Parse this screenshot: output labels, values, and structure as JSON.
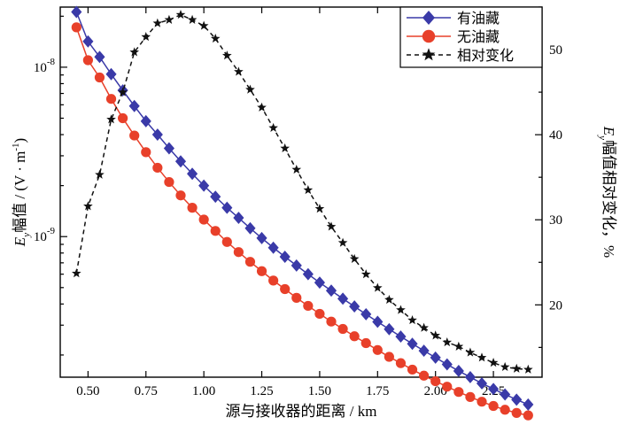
{
  "chart_data": {
    "type": "line",
    "xlabel": "源与接收器的距离 / km",
    "ylabel_left": {
      "symbol": "E",
      "sub": "y",
      "text": "幅值 / (V · m",
      "sup": "-1",
      "close": ")"
    },
    "ylabel_right": {
      "symbol": "E",
      "sub": "y",
      "text": "幅值相对变化，%"
    },
    "xlim": [
      0.38,
      2.46
    ],
    "ylim_left_log10": [
      -9.83,
      -7.645
    ],
    "ylim_right": [
      11.5,
      55
    ],
    "x_ticks": [
      "0.50",
      "0.75",
      "1.00",
      "1.25",
      "1.50",
      "1.75",
      "2.00",
      "2.25"
    ],
    "x_tick_values": [
      0.5,
      0.75,
      1.0,
      1.25,
      1.5,
      1.75,
      2.0,
      2.25
    ],
    "y_left_ticks": [
      {
        "base": "10",
        "exp": "-8",
        "value": 1e-08
      },
      {
        "base": "10",
        "exp": "-9",
        "value": 1e-09
      }
    ],
    "y_right_ticks": [
      "20",
      "30",
      "40",
      "50"
    ],
    "y_right_tick_values": [
      20,
      30,
      40,
      50
    ],
    "x": [
      0.45,
      0.5,
      0.55,
      0.6,
      0.65,
      0.7,
      0.75,
      0.8,
      0.85,
      0.9,
      0.95,
      1.0,
      1.05,
      1.1,
      1.15,
      1.2,
      1.25,
      1.3,
      1.35,
      1.4,
      1.45,
      1.5,
      1.55,
      1.6,
      1.65,
      1.7,
      1.75,
      1.8,
      1.85,
      1.9,
      1.95,
      2.0,
      2.05,
      2.1,
      2.15,
      2.2,
      2.25,
      2.3,
      2.35,
      2.4
    ],
    "series": [
      {
        "name": "有油藏",
        "axis": "left",
        "color": "#3a3aa8",
        "marker": "diamond",
        "dash": "solid",
        "values": [
          2.12e-08,
          1.42e-08,
          1.15e-08,
          9.1e-09,
          7.3e-09,
          5.9e-09,
          4.8e-09,
          4e-09,
          3.32e-09,
          2.78e-09,
          2.35e-09,
          2e-09,
          1.72e-09,
          1.48e-09,
          1.29e-09,
          1.12e-09,
          9.8e-10,
          8.6e-10,
          7.6e-10,
          6.75e-10,
          6e-10,
          5.35e-10,
          4.8e-10,
          4.3e-10,
          3.87e-10,
          3.48e-10,
          3.14e-10,
          2.84e-10,
          2.57e-10,
          2.33e-10,
          2.12e-10,
          1.93e-10,
          1.76e-10,
          1.61e-10,
          1.48e-10,
          1.36e-10,
          1.26e-10,
          1.17e-10,
          1.09e-10,
          1.02e-10
        ]
      },
      {
        "name": "无油藏",
        "axis": "left",
        "color": "#e8402a",
        "marker": "circle",
        "dash": "solid",
        "values": [
          1.72e-08,
          1.1e-08,
          8.7e-09,
          6.5e-09,
          5e-09,
          3.95e-09,
          3.15e-09,
          2.55e-09,
          2.1e-09,
          1.75e-09,
          1.48e-09,
          1.26e-09,
          1.08e-09,
          9.3e-10,
          8.1e-10,
          7.1e-10,
          6.25e-10,
          5.5e-10,
          4.9e-10,
          4.35e-10,
          3.9e-10,
          3.5e-10,
          3.15e-10,
          2.85e-10,
          2.58e-10,
          2.35e-10,
          2.14e-10,
          1.95e-10,
          1.79e-10,
          1.64e-10,
          1.51e-10,
          1.4e-10,
          1.3e-10,
          1.21e-10,
          1.13e-10,
          1.06e-10,
          1e-10,
          9.5e-11,
          9.1e-11,
          8.8e-11
        ]
      },
      {
        "name": "相对变化",
        "axis": "right",
        "color": "#111111",
        "marker": "star",
        "dash": "dashed",
        "values": [
          23.7,
          31.6,
          35.3,
          41.8,
          45.0,
          49.7,
          51.5,
          53.1,
          53.5,
          54.1,
          53.5,
          52.8,
          51.3,
          49.3,
          47.4,
          45.3,
          43.2,
          40.8,
          38.4,
          35.9,
          33.5,
          31.3,
          29.2,
          27.3,
          25.4,
          23.6,
          22.0,
          20.6,
          19.4,
          18.2,
          17.3,
          16.4,
          15.6,
          15.1,
          14.4,
          13.8,
          13.2,
          12.7,
          12.5,
          12.4
        ]
      }
    ],
    "legend": [
      "有油藏",
      "无油藏",
      "相对变化"
    ],
    "legend_position": "top-right",
    "grid": false
  }
}
